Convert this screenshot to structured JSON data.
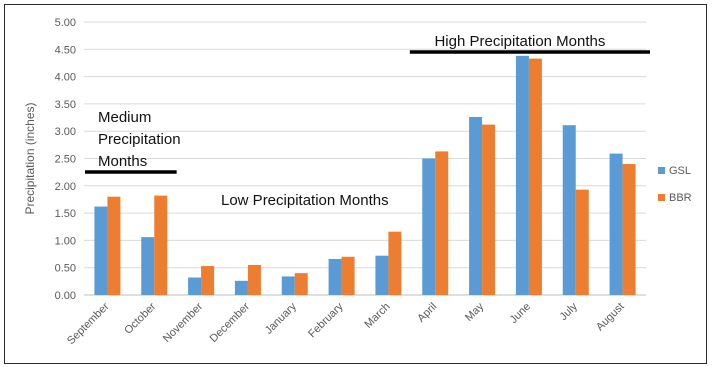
{
  "chart_data": {
    "type": "bar",
    "ylabel": "Precipitation (inches)",
    "xlabel": "",
    "ylim": [
      0,
      5
    ],
    "yticks": [
      "0.00",
      "0.50",
      "1.00",
      "1.50",
      "2.00",
      "2.50",
      "3.00",
      "3.50",
      "4.00",
      "4.50",
      "5.00"
    ],
    "categories": [
      "September",
      "October",
      "November",
      "December",
      "January",
      "February",
      "March",
      "April",
      "May",
      "June",
      "July",
      "August"
    ],
    "series": [
      {
        "name": "GSL",
        "color": "#5b9bd5",
        "values": [
          1.62,
          1.06,
          0.32,
          0.26,
          0.34,
          0.66,
          0.72,
          2.5,
          3.26,
          4.38,
          3.11,
          2.59
        ]
      },
      {
        "name": "BBR",
        "color": "#ed7d31",
        "values": [
          1.8,
          1.82,
          0.53,
          0.55,
          0.4,
          0.7,
          1.16,
          2.63,
          3.12,
          4.33,
          1.93,
          2.4
        ]
      }
    ],
    "grid": true,
    "legend": "right",
    "annotations": [
      {
        "text": "High Precipitation Months",
        "span": [
          "April",
          "August"
        ]
      },
      {
        "text": "Low Precipitation Months"
      },
      {
        "lines": [
          "Medium",
          "Precipitation",
          "Months"
        ],
        "span": [
          "September",
          "October"
        ]
      }
    ]
  }
}
